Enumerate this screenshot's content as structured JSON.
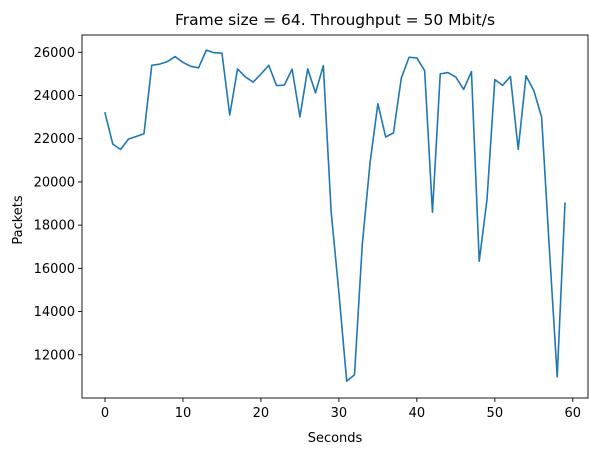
{
  "chart_data": {
    "type": "line",
    "title": "Frame size = 64. Throughput = 50 Mbit/s",
    "xlabel": "Seconds",
    "ylabel": "Packets",
    "xlim": [
      -2.95,
      61.95
    ],
    "ylim": [
      10000,
      26800
    ],
    "xticks": [
      0,
      10,
      20,
      30,
      40,
      50,
      60
    ],
    "yticks": [
      12000,
      14000,
      16000,
      18000,
      20000,
      22000,
      24000,
      26000
    ],
    "grid": false,
    "color": "#1f77b4",
    "series": [
      {
        "x": [
          0,
          1,
          2,
          3,
          4,
          5,
          6,
          7,
          8,
          9,
          10,
          11,
          12,
          13,
          14,
          15,
          16,
          17,
          18,
          19,
          20,
          21,
          22,
          23,
          24,
          25,
          26,
          27,
          28,
          29,
          30,
          31,
          32,
          33,
          34,
          35,
          36,
          37,
          38,
          39,
          40,
          41,
          42,
          43,
          44,
          45,
          46,
          47,
          48,
          49,
          50,
          51,
          52,
          53,
          54,
          55,
          56,
          57,
          58,
          59
        ],
        "values": [
          23200,
          21750,
          21500,
          21980,
          22100,
          22230,
          25400,
          25450,
          25570,
          25800,
          25530,
          25350,
          25280,
          26100,
          25980,
          25960,
          23100,
          25230,
          24860,
          24620,
          24990,
          25400,
          24460,
          24480,
          25220,
          23010,
          25230,
          24120,
          25380,
          18650,
          14870,
          10780,
          11070,
          17100,
          20900,
          23620,
          22080,
          22270,
          24800,
          25770,
          25740,
          25150,
          18600,
          25000,
          25060,
          24850,
          24280,
          25110,
          16330,
          19200,
          24740,
          24470,
          24880,
          21510,
          24910,
          24230,
          23000,
          16880,
          10980,
          19020
        ]
      }
    ]
  }
}
